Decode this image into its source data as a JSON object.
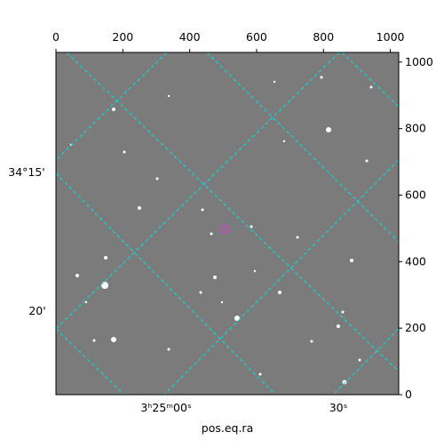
{
  "chart_data": {
    "type": "image",
    "xlabel": "pos.eq.ra",
    "xlim": [
      0,
      1025
    ],
    "xticks": [
      0,
      200,
      400,
      600,
      800,
      1000
    ],
    "ylim": [
      0,
      1029
    ],
    "yticks": [
      0,
      200,
      400,
      600,
      800,
      1000
    ],
    "world_y_labels": [
      "34°15'",
      "20'"
    ],
    "world_x_labels": [
      "3ʰ25ᵐ00ˢ",
      "30ˢ"
    ],
    "grid_color": "#00e5e5"
  }
}
